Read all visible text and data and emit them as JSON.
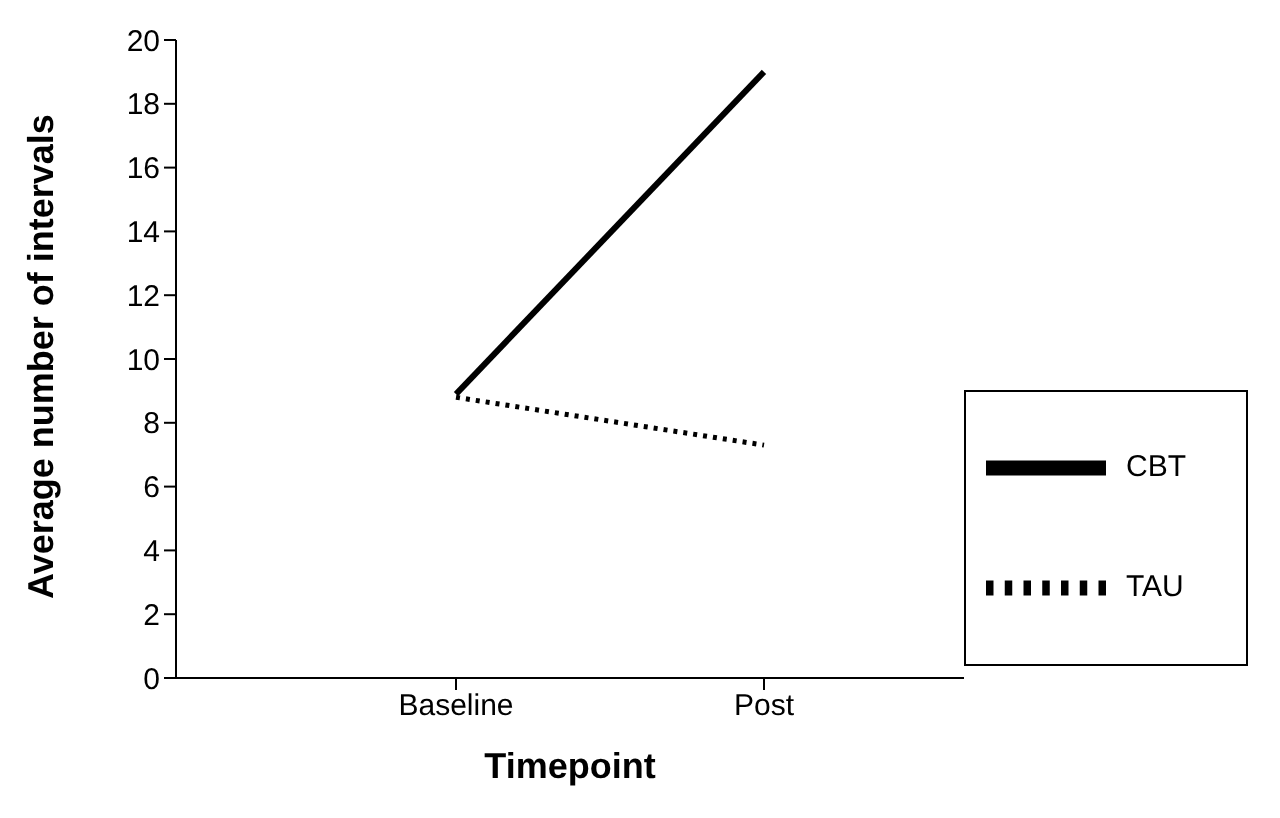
{
  "chart_data": {
    "type": "line",
    "xlabel": "Timepoint",
    "ylabel": "Average number of intervals",
    "categories": [
      "Baseline",
      "Post"
    ],
    "series": [
      {
        "name": "CBT",
        "color": "#000000",
        "values": [
          8.9,
          19
        ],
        "line_style": "solid"
      },
      {
        "name": "TAU",
        "color": "#000000",
        "values": [
          8.8,
          7.3
        ],
        "line_style": "dotted"
      }
    ],
    "ylim": [
      0,
      20
    ],
    "yticks": [
      0,
      2,
      4,
      6,
      8,
      10,
      12,
      14,
      16,
      18,
      20
    ],
    "grid": false,
    "legend": "bottom right",
    "marker": "none"
  }
}
